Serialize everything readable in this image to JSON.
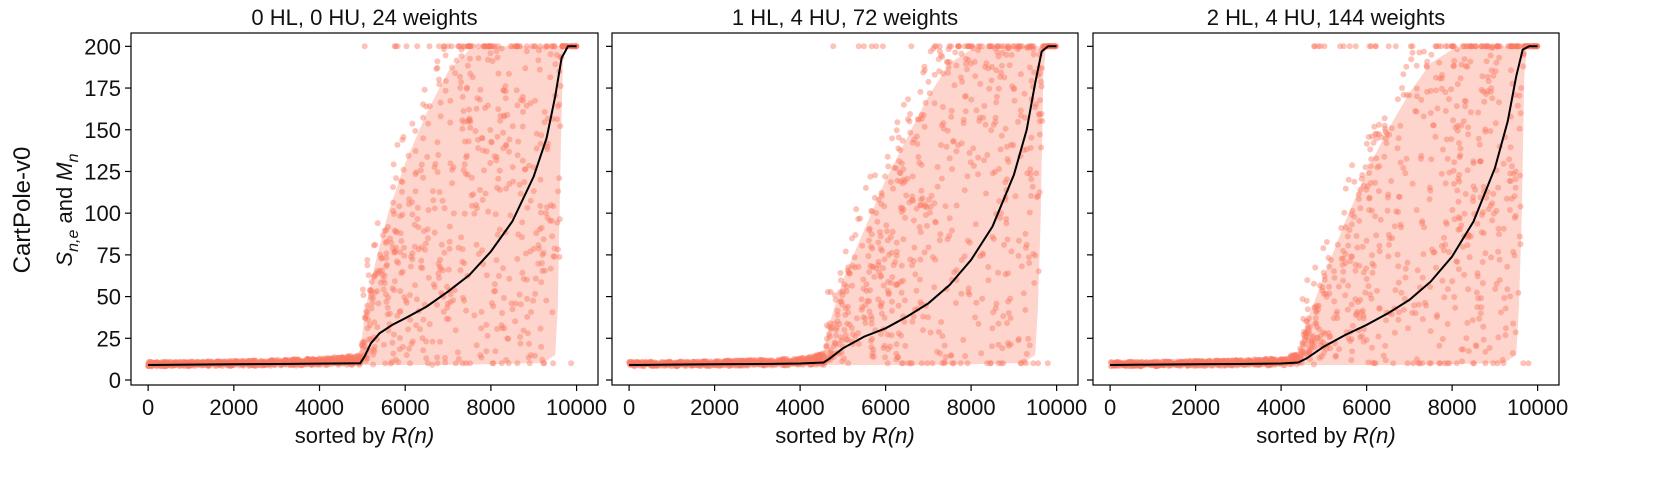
{
  "row_label": "CartPole-v0",
  "ylabel": {
    "symbol_s": "S",
    "sub_s": "n,e",
    "connector": " and ",
    "symbol_m": "M",
    "sub_m": "n"
  },
  "xlabel": {
    "prefix": "sorted by ",
    "italic": "R(n)"
  },
  "colors": {
    "scatter": "#fa7b63",
    "band": "#fcb3a4",
    "mean_line": "#000000",
    "frame": "#000000"
  },
  "chart_data": [
    {
      "type": "scatter",
      "title": "0 HL, 0 HU, 24 weights",
      "xlim": [
        -400,
        10500
      ],
      "ylim": [
        -3,
        208
      ],
      "xticks": [
        0,
        2000,
        4000,
        6000,
        8000,
        10000
      ],
      "yticks": [
        0,
        25,
        50,
        75,
        100,
        125,
        150,
        175,
        200
      ],
      "show_ytick_labels": true,
      "series": [
        {
          "kind": "mean_line",
          "x": [
            0,
            1000,
            2000,
            3000,
            4000,
            4950,
            5050,
            5200,
            5400,
            5700,
            6000,
            6500,
            7000,
            7500,
            8000,
            8500,
            9000,
            9300,
            9500,
            9650,
            9800,
            10000
          ],
          "y": [
            9,
            9.2,
            9.4,
            9.6,
            9.8,
            10,
            14,
            22,
            28,
            33,
            37,
            44,
            53,
            63,
            77,
            95,
            122,
            145,
            170,
            193,
            200,
            200
          ]
        },
        {
          "kind": "band_low",
          "x": [
            0,
            1000,
            2000,
            3000,
            4000,
            4950,
            5050,
            5500,
            6000,
            7000,
            8000,
            8800,
            9200,
            9500,
            9600,
            9650
          ],
          "y": [
            8,
            8.2,
            8.3,
            8.5,
            8.7,
            9,
            9,
            9,
            9,
            9,
            9.5,
            10,
            10,
            15,
            60,
            200
          ]
        },
        {
          "kind": "band_high",
          "x": [
            0,
            1000,
            2000,
            3000,
            4000,
            4950,
            5050,
            5300,
            5600,
            6000,
            6500,
            7000,
            7500,
            8000
          ],
          "y": [
            11,
            11,
            11.5,
            12,
            13,
            15,
            40,
            70,
            100,
            130,
            160,
            185,
            198,
            200
          ]
        }
      ],
      "scatter_params": {
        "n_points": 1300,
        "outlier_x_start": 5000
      }
    },
    {
      "type": "scatter",
      "title": "1 HL, 4 HU, 72 weights",
      "xlim": [
        -400,
        10500
      ],
      "ylim": [
        -3,
        208
      ],
      "xticks": [
        0,
        2000,
        4000,
        6000,
        8000,
        10000
      ],
      "yticks": [
        0,
        25,
        50,
        75,
        100,
        125,
        150,
        175,
        200
      ],
      "show_ytick_labels": false,
      "series": [
        {
          "kind": "mean_line",
          "x": [
            0,
            1000,
            2000,
            3000,
            4000,
            4550,
            4700,
            5000,
            5500,
            6000,
            6500,
            7000,
            7500,
            8000,
            8500,
            9000,
            9300,
            9500,
            9650,
            9800,
            10000
          ],
          "y": [
            9,
            9.2,
            9.4,
            9.6,
            9.9,
            10.5,
            13,
            19,
            26,
            31,
            38,
            46,
            57,
            72,
            92,
            123,
            150,
            178,
            197,
            200,
            200
          ]
        },
        {
          "kind": "band_low",
          "x": [
            0,
            1000,
            2000,
            3000,
            4000,
            4550,
            5000,
            6000,
            7000,
            8000,
            8800,
            9200,
            9500,
            9600,
            9700
          ],
          "y": [
            8,
            8.2,
            8.3,
            8.5,
            8.7,
            9,
            9,
            9,
            9,
            9.5,
            10,
            10,
            15,
            60,
            200
          ]
        },
        {
          "kind": "band_high",
          "x": [
            0,
            1000,
            2000,
            3000,
            4000,
            4550,
            4700,
            5000,
            5500,
            6000,
            6500,
            7000,
            7500,
            8000,
            8500
          ],
          "y": [
            11,
            11,
            11.5,
            12,
            13,
            16,
            35,
            60,
            90,
            120,
            145,
            170,
            190,
            198,
            200
          ]
        }
      ],
      "scatter_params": {
        "n_points": 1300,
        "outlier_x_start": 4600
      }
    },
    {
      "type": "scatter",
      "title": "2 HL, 4 HU, 144 weights",
      "xlim": [
        -400,
        10500
      ],
      "ylim": [
        -3,
        208
      ],
      "xticks": [
        0,
        2000,
        4000,
        6000,
        8000,
        10000
      ],
      "yticks": [
        0,
        25,
        50,
        75,
        100,
        125,
        150,
        175,
        200
      ],
      "show_ytick_labels": false,
      "series": [
        {
          "kind": "mean_line",
          "x": [
            0,
            1000,
            2000,
            3000,
            4000,
            4400,
            4600,
            5000,
            5500,
            6000,
            6500,
            7000,
            7500,
            8000,
            8500,
            9000,
            9300,
            9500,
            9650,
            9800,
            10000
          ],
          "y": [
            9,
            9.2,
            9.4,
            9.6,
            9.9,
            10.5,
            13,
            20,
            27,
            33,
            40,
            48,
            59,
            74,
            95,
            127,
            155,
            182,
            198,
            200,
            200
          ]
        },
        {
          "kind": "band_low",
          "x": [
            0,
            1000,
            2000,
            3000,
            4000,
            4400,
            5000,
            6000,
            7000,
            8000,
            8800,
            9200,
            9500,
            9600,
            9700
          ],
          "y": [
            8,
            8.2,
            8.3,
            8.5,
            8.7,
            9,
            9,
            9,
            9,
            9.5,
            10,
            10,
            15,
            60,
            200
          ]
        },
        {
          "kind": "band_high",
          "x": [
            0,
            1000,
            2000,
            3000,
            4000,
            4400,
            4600,
            5000,
            5500,
            6000,
            6500,
            7000,
            7500,
            8000,
            8500
          ],
          "y": [
            11,
            11,
            11.5,
            12,
            13,
            16,
            35,
            62,
            95,
            125,
            150,
            172,
            190,
            198,
            200
          ]
        }
      ],
      "scatter_params": {
        "n_points": 1300,
        "outlier_x_start": 4500
      }
    }
  ]
}
